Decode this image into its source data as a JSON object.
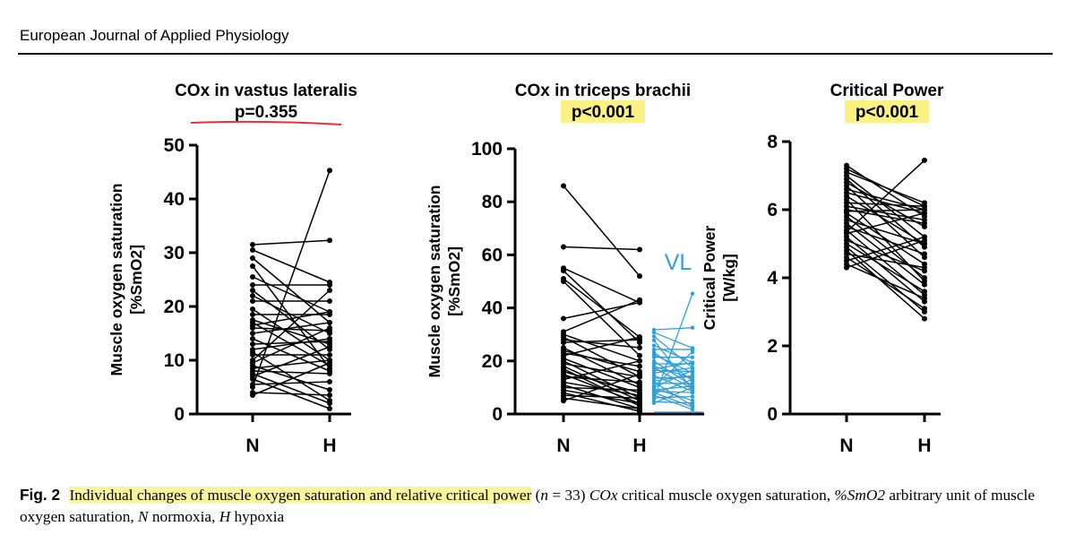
{
  "header": {
    "journal": "European Journal of Applied Physiology"
  },
  "colors": {
    "black_lines": "#000000",
    "vl_overlay": "#2f9fd6",
    "highlight": "#fbf283",
    "underline": "#e8303a"
  },
  "chart_data": [
    {
      "type": "line",
      "title": "COx in vastus lateralis",
      "subtitle": "p=0.355",
      "subtitle_style": "red underline",
      "ylabel": "Muscle oxygen saturation [%SmO2]",
      "ylim": [
        0,
        50
      ],
      "yticks": [
        0,
        10,
        20,
        30,
        40,
        50
      ],
      "categories": [
        "N",
        "H"
      ],
      "pairs": [
        [
          31.5,
          32.3
        ],
        [
          30.5,
          24.5
        ],
        [
          29,
          17
        ],
        [
          27.5,
          8.5
        ],
        [
          25.5,
          19
        ],
        [
          24,
          24
        ],
        [
          23,
          12
        ],
        [
          22,
          15
        ],
        [
          21,
          21
        ],
        [
          19.5,
          10
        ],
        [
          18.5,
          18.5
        ],
        [
          17.5,
          13
        ],
        [
          17,
          9
        ],
        [
          16.5,
          19
        ],
        [
          16,
          15.5
        ],
        [
          15,
          17
        ],
        [
          14,
          8
        ],
        [
          13,
          13.5
        ],
        [
          12,
          14
        ],
        [
          11.5,
          2.5
        ],
        [
          11,
          11
        ],
        [
          10,
          23
        ],
        [
          9,
          4.5
        ],
        [
          8.5,
          10
        ],
        [
          8,
          7.5
        ],
        [
          7.5,
          2
        ],
        [
          7,
          12.5
        ],
        [
          6.5,
          1
        ],
        [
          5.5,
          6
        ],
        [
          5,
          45.3
        ],
        [
          4,
          3.5
        ],
        [
          3.5,
          9.5
        ],
        [
          9.5,
          16
        ]
      ]
    },
    {
      "type": "line",
      "title": "COx in triceps brachii",
      "subtitle": "p<0.001",
      "subtitle_style": "yellow highlight",
      "ylabel": "Muscle oxygen saturation [%SmO2]",
      "ylim": [
        0,
        100
      ],
      "yticks": [
        0,
        20,
        40,
        60,
        80,
        100
      ],
      "categories": [
        "N",
        "H"
      ],
      "pairs": [
        [
          86,
          52
        ],
        [
          63,
          62
        ],
        [
          55,
          42
        ],
        [
          54,
          27
        ],
        [
          51,
          29
        ],
        [
          50,
          22
        ],
        [
          36,
          42
        ],
        [
          31,
          43
        ],
        [
          30,
          20
        ],
        [
          29,
          14
        ],
        [
          28,
          25
        ],
        [
          27,
          28
        ],
        [
          25,
          11
        ],
        [
          24,
          16
        ],
        [
          23,
          18
        ],
        [
          22,
          29
        ],
        [
          21,
          10
        ],
        [
          20,
          6
        ],
        [
          19,
          14
        ],
        [
          18,
          5
        ],
        [
          17,
          3
        ],
        [
          16,
          8
        ],
        [
          15,
          4
        ],
        [
          14,
          12
        ],
        [
          13,
          20
        ],
        [
          12,
          7
        ],
        [
          11,
          2
        ],
        [
          10,
          9
        ],
        [
          9,
          4
        ],
        [
          8,
          1
        ],
        [
          7,
          6
        ],
        [
          6,
          2
        ],
        [
          5,
          15
        ]
      ],
      "overlay": {
        "label": "VL",
        "pairs": [
          [
            31.5,
            32.3
          ],
          [
            30.5,
            24.5
          ],
          [
            29,
            17
          ],
          [
            27.5,
            8.5
          ],
          [
            25.5,
            19
          ],
          [
            24,
            24
          ],
          [
            23,
            12
          ],
          [
            22,
            15
          ],
          [
            21,
            21
          ],
          [
            19.5,
            10
          ],
          [
            18.5,
            18.5
          ],
          [
            17.5,
            13
          ],
          [
            17,
            9
          ],
          [
            16.5,
            19
          ],
          [
            16,
            15.5
          ],
          [
            15,
            17
          ],
          [
            14,
            8
          ],
          [
            13,
            13.5
          ],
          [
            12,
            14
          ],
          [
            11.5,
            2.5
          ],
          [
            11,
            11
          ],
          [
            10,
            23
          ],
          [
            9,
            4.5
          ],
          [
            8.5,
            10
          ],
          [
            8,
            7.5
          ],
          [
            7.5,
            2
          ],
          [
            7,
            12.5
          ],
          [
            6.5,
            1
          ],
          [
            5.5,
            6
          ],
          [
            5,
            45.3
          ],
          [
            4,
            3.5
          ],
          [
            3.5,
            9.5
          ],
          [
            9.5,
            16
          ]
        ]
      }
    },
    {
      "type": "line",
      "title": "Critical Power",
      "subtitle": "p<0.001",
      "subtitle_style": "yellow highlight",
      "ylabel": "Critical Power [W/kg]",
      "ylim": [
        0,
        8
      ],
      "yticks": [
        0,
        2,
        4,
        6,
        8
      ],
      "categories": [
        "N",
        "H"
      ],
      "pairs": [
        [
          7.3,
          5.8
        ],
        [
          7.2,
          6.1
        ],
        [
          7.1,
          6.2
        ],
        [
          7.0,
          5.2
        ],
        [
          6.9,
          4.9
        ],
        [
          6.8,
          5.5
        ],
        [
          6.7,
          4.6
        ],
        [
          6.6,
          6.0
        ],
        [
          6.5,
          5.9
        ],
        [
          6.4,
          5.0
        ],
        [
          6.3,
          3.9
        ],
        [
          6.2,
          6.1
        ],
        [
          6.1,
          5.7
        ],
        [
          6.0,
          5.6
        ],
        [
          5.9,
          4.4
        ],
        [
          5.8,
          4.0
        ],
        [
          5.7,
          5.0
        ],
        [
          5.6,
          3.8
        ],
        [
          5.5,
          4.7
        ],
        [
          5.4,
          3.5
        ],
        [
          5.3,
          5.9
        ],
        [
          5.2,
          3.3
        ],
        [
          5.1,
          4.2
        ],
        [
          5.0,
          3.6
        ],
        [
          4.9,
          3.0
        ],
        [
          4.8,
          2.8
        ],
        [
          4.7,
          4.3
        ],
        [
          4.6,
          3.1
        ],
        [
          4.5,
          5.2
        ],
        [
          4.4,
          3.4
        ],
        [
          4.3,
          5.1
        ],
        [
          5.35,
          7.45
        ],
        [
          5.95,
          6.0
        ]
      ]
    }
  ],
  "caption": {
    "fig_label": "Fig. 2",
    "highlighted": "Individual changes of muscle oxygen saturation and relative critical power",
    "n_open": "(",
    "n_var": "n",
    "n_rest": " = 33) ",
    "t1_term": "COx",
    "t1_desc": " critical muscle oxygen saturation, ",
    "t2_term": "%SmO2",
    "t2_desc": " arbitrary unit of muscle oxygen saturation, ",
    "t3_term": "N",
    "t3_desc": " normoxia, ",
    "t4_term": "H",
    "t4_desc": " hypoxia"
  }
}
